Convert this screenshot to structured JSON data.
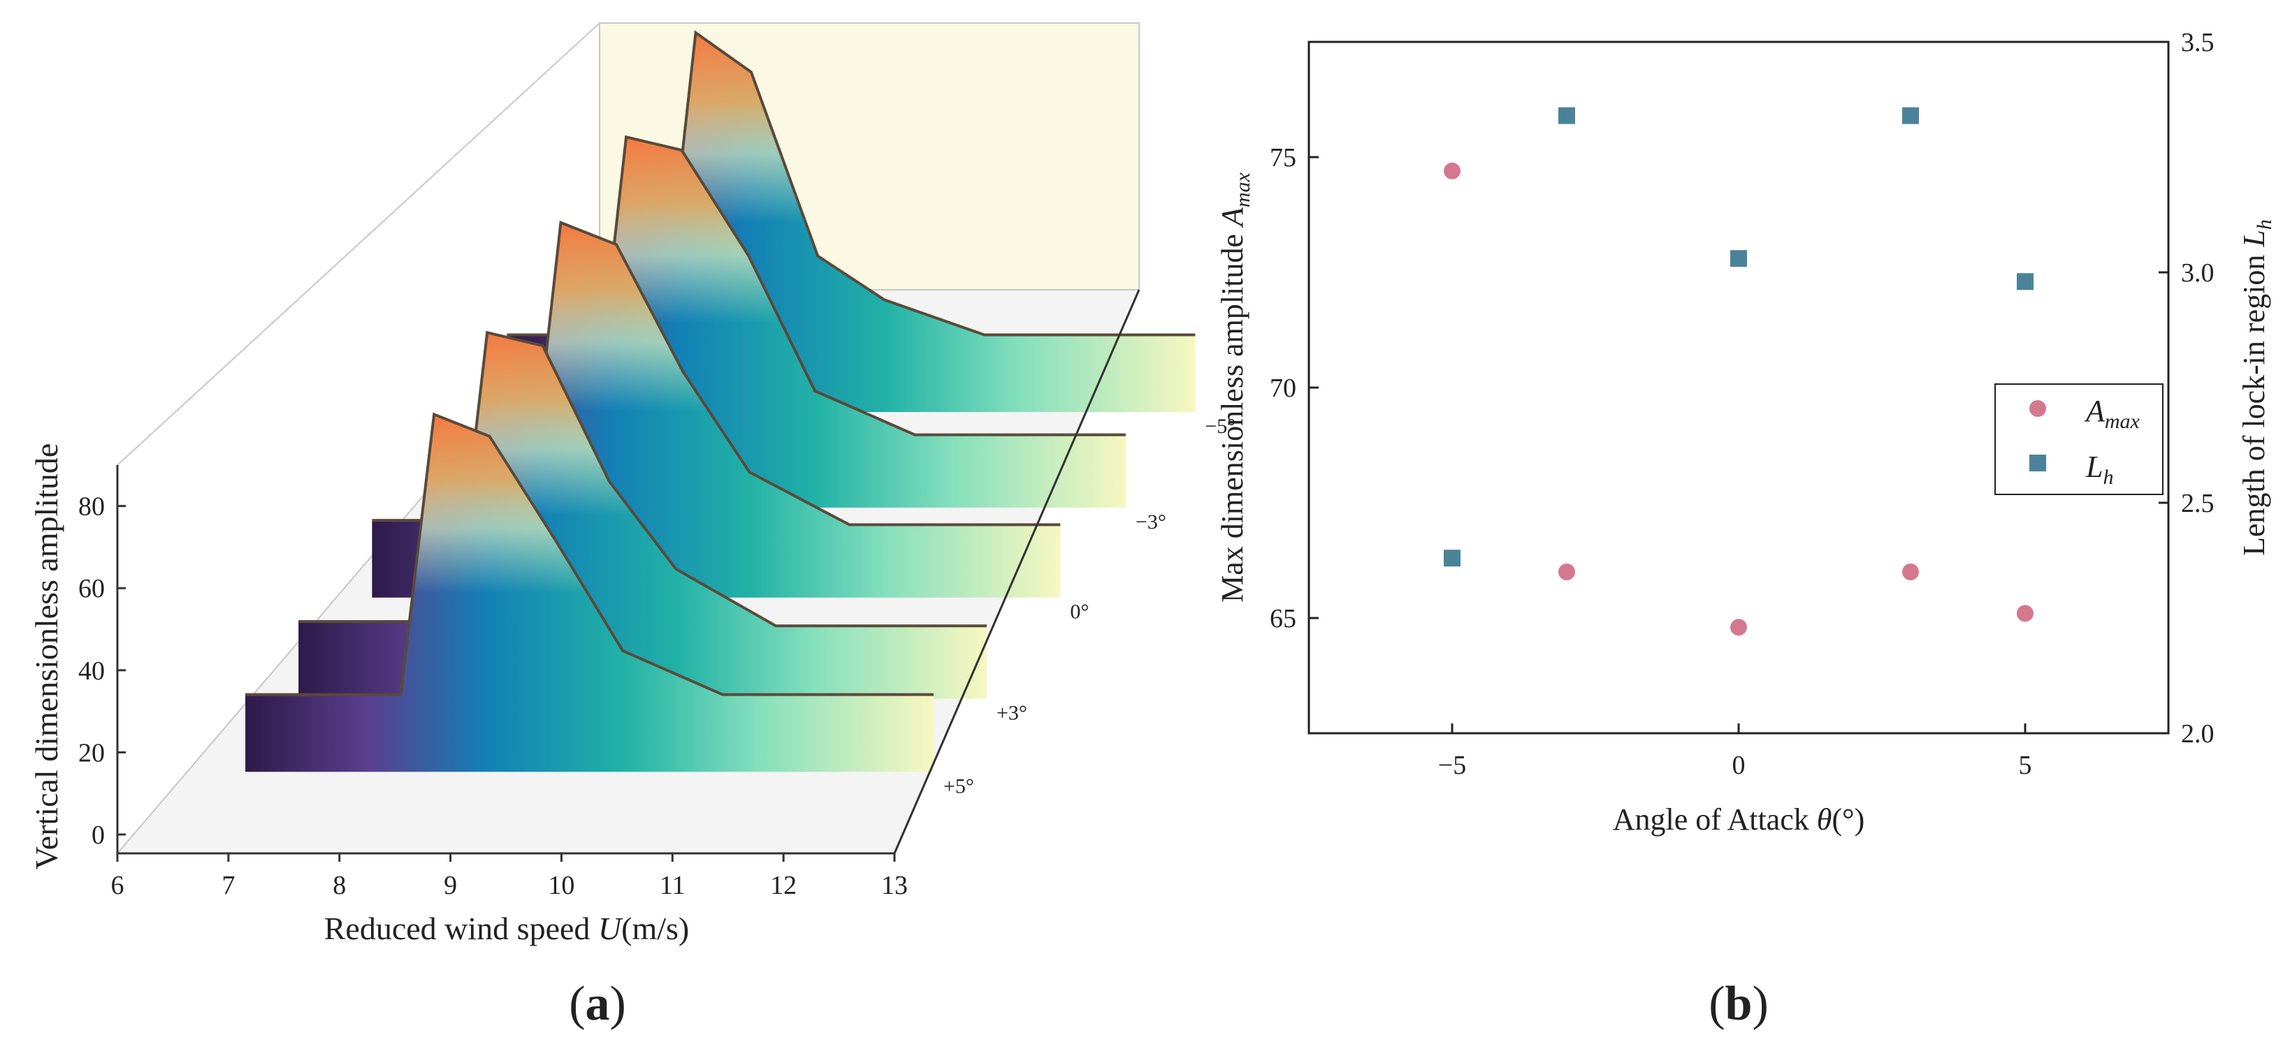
{
  "panels": {
    "a": {
      "caption": "a"
    },
    "b": {
      "caption": "b"
    }
  },
  "chart_data": [
    {
      "id": "a",
      "type": "area",
      "subtype": "3d-waterfall",
      "title": "",
      "xlabel_text": "Reduced wind speed ",
      "xlabel_var": "U",
      "xlabel_unit": "(m/s)",
      "ylabel": "Vertical dimensionless amplitude",
      "xlim": [
        6,
        13
      ],
      "ylim": [
        0,
        90
      ],
      "xticks": [
        "6",
        "7",
        "8",
        "9",
        "10",
        "11",
        "12",
        "13"
      ],
      "yticks": [
        "0",
        "20",
        "40",
        "60",
        "80"
      ],
      "series": [
        {
          "name": "+5°",
          "x": [
            6.6,
            8.0,
            8.3,
            8.8,
            9.4,
            10.0,
            10.9,
            12.8
          ],
          "y": [
            17,
            17,
            81,
            76,
            52,
            27,
            17,
            17
          ]
        },
        {
          "name": "+3°",
          "x": [
            6.6,
            8.0,
            8.3,
            8.8,
            9.4,
            10.0,
            10.9,
            12.8
          ],
          "y": [
            17,
            17,
            83,
            80,
            49,
            29,
            16,
            16
          ]
        },
        {
          "name": "0°",
          "x": [
            6.6,
            8.0,
            8.3,
            8.8,
            9.4,
            10.0,
            10.9,
            12.8
          ],
          "y": [
            17,
            17,
            85,
            80,
            51,
            28,
            16,
            16
          ]
        },
        {
          "name": "−3°",
          "x": [
            6.6,
            8.0,
            8.3,
            8.8,
            9.4,
            10.0,
            10.9,
            12.8
          ],
          "y": [
            16,
            16,
            84,
            81,
            57,
            26,
            16,
            16
          ]
        },
        {
          "name": "−5°",
          "x": [
            6.6,
            8.0,
            8.3,
            8.8,
            9.4,
            10.0,
            10.9,
            12.8
          ],
          "y": [
            17,
            17,
            86,
            77,
            35,
            25,
            17,
            17
          ]
        }
      ]
    },
    {
      "id": "b",
      "type": "scatter",
      "title": "",
      "xlabel_text": "Angle of Attack ",
      "xlabel_var": "θ",
      "xlabel_unit": "(°)",
      "ylabel_text": "Max dimensionless amplitude ",
      "ylabel_var": "A",
      "ylabel_sub": "max",
      "y2label_text": "Length of lock-in region ",
      "y2label_var": "L",
      "y2label_sub": "h",
      "xlim": [
        -7.5,
        7.5
      ],
      "ylim": [
        62.5,
        77.5
      ],
      "y2lim": [
        2.0,
        3.5
      ],
      "xticks": [
        {
          "v": -5,
          "t": "−5"
        },
        {
          "v": 0,
          "t": "0"
        },
        {
          "v": 5,
          "t": "5"
        }
      ],
      "yticks": [
        {
          "v": 65,
          "t": "65"
        },
        {
          "v": 70,
          "t": "70"
        },
        {
          "v": 75,
          "t": "75"
        }
      ],
      "y2ticks": [
        {
          "v": 2.0,
          "t": "2.0"
        },
        {
          "v": 2.5,
          "t": "2.5"
        },
        {
          "v": 3.0,
          "t": "3.0"
        },
        {
          "v": 3.5,
          "t": "3.5"
        }
      ],
      "series": [
        {
          "name": "A_max",
          "legend_var": "A",
          "legend_sub": "max",
          "axis": "left",
          "marker": "circle",
          "color": "#d4788f",
          "x": [
            -5,
            -3,
            0,
            3,
            5
          ],
          "y": [
            74.7,
            66.0,
            64.8,
            66.0,
            65.1
          ]
        },
        {
          "name": "L_h",
          "legend_var": "L",
          "legend_sub": "h",
          "axis": "right",
          "marker": "square",
          "color": "#4a8399",
          "x": [
            -5,
            -3,
            0,
            3,
            5
          ],
          "y": [
            2.38,
            3.34,
            3.03,
            3.34,
            2.98
          ]
        }
      ],
      "legend": "center-right"
    }
  ],
  "colors": {
    "low": "#2e1a4a",
    "mid": "#1380b6",
    "teal": "#25c3a3",
    "pale": "#f8f7c0",
    "peak": "#ff7a3c",
    "wall": "#fbf9e4",
    "floor": "#f2f2f2"
  }
}
